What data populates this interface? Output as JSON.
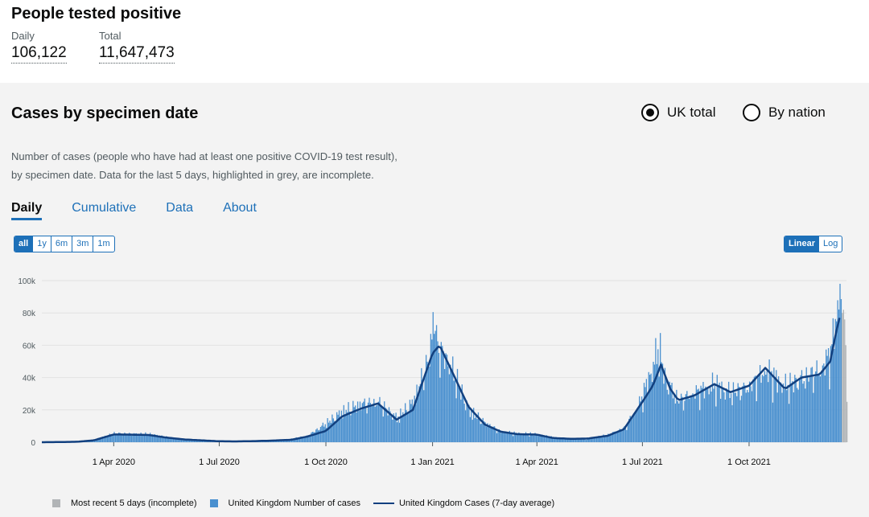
{
  "header": {
    "title": "People tested positive",
    "daily_label": "Daily",
    "daily_value": "106,122",
    "total_label": "Total",
    "total_value": "11,647,473"
  },
  "card": {
    "title": "Cases by specimen date",
    "radio_uk": "UK total",
    "radio_nation": "By nation",
    "selected_radio": "UK total",
    "description_line1": "Number of cases (people who have had at least one positive COVID-19 test result),",
    "description_line2": "by specimen date. Data for the last 5 days, highlighted in grey, are incomplete.",
    "tabs": [
      {
        "label": "Daily",
        "active": true
      },
      {
        "label": "Cumulative",
        "active": false
      },
      {
        "label": "Data",
        "active": false
      },
      {
        "label": "About",
        "active": false
      }
    ],
    "ranges": [
      {
        "label": "all",
        "active": true
      },
      {
        "label": "1y",
        "active": false
      },
      {
        "label": "6m",
        "active": false
      },
      {
        "label": "3m",
        "active": false
      },
      {
        "label": "1m",
        "active": false
      }
    ],
    "scales": [
      {
        "label": "Linear",
        "active": true
      },
      {
        "label": "Log",
        "active": false
      }
    ]
  },
  "chart_data": {
    "type": "bar",
    "title": "",
    "xlabel": "",
    "ylabel": "",
    "ylim": [
      0,
      105000
    ],
    "y_ticks": [
      0,
      20000,
      40000,
      60000,
      80000,
      100000
    ],
    "y_tick_labels": [
      "0",
      "20k",
      "40k",
      "60k",
      "80k",
      "100k"
    ],
    "x_tick_labels": [
      "1 Apr 2020",
      "1 Jul 2020",
      "1 Oct 2020",
      "1 Jan 2021",
      "1 Apr 2021",
      "1 Jul 2021",
      "1 Oct 2021"
    ],
    "x_tick_dates": [
      "2020-04-01",
      "2020-07-01",
      "2020-10-01",
      "2021-01-01",
      "2021-04-01",
      "2021-07-01",
      "2021-10-01"
    ],
    "x_range": [
      "2020-01-30",
      "2021-12-24"
    ],
    "grid": "horizontal",
    "legend_position": "bottom",
    "colors": {
      "bars": "#4a90cf",
      "incomplete": "#b1b4b6",
      "average": "#12407f"
    },
    "series": [
      {
        "name": "United Kingdom Number of cases",
        "kind": "bar",
        "x": [
          "2020-02-15",
          "2020-03-01",
          "2020-03-15",
          "2020-04-01",
          "2020-04-15",
          "2020-05-01",
          "2020-05-15",
          "2020-06-01",
          "2020-06-15",
          "2020-07-01",
          "2020-07-15",
          "2020-08-01",
          "2020-08-15",
          "2020-09-01",
          "2020-09-15",
          "2020-10-01",
          "2020-10-15",
          "2020-11-01",
          "2020-11-15",
          "2020-12-01",
          "2020-12-15",
          "2020-12-29",
          "2021-01-01",
          "2021-01-05",
          "2021-01-15",
          "2021-02-01",
          "2021-02-15",
          "2021-03-01",
          "2021-03-15",
          "2021-04-01",
          "2021-04-15",
          "2021-05-01",
          "2021-05-15",
          "2021-06-01",
          "2021-06-15",
          "2021-06-28",
          "2021-07-01",
          "2021-07-08",
          "2021-07-15",
          "2021-07-20",
          "2021-08-01",
          "2021-08-15",
          "2021-09-01",
          "2021-09-15",
          "2021-10-01",
          "2021-10-15",
          "2021-11-01",
          "2021-11-15",
          "2021-12-01",
          "2021-12-10",
          "2021-12-15",
          "2021-12-17",
          "2021-12-19"
        ],
        "values": [
          0,
          300,
          1500,
          5500,
          5200,
          5000,
          3200,
          1800,
          1200,
          700,
          650,
          900,
          1200,
          2000,
          4000,
          12000,
          19000,
          24000,
          25000,
          15000,
          25000,
          53000,
          81000,
          60000,
          50000,
          20000,
          12000,
          6500,
          5500,
          4800,
          3000,
          2300,
          2200,
          4500,
          9000,
          24000,
          30000,
          44000,
          60000,
          40000,
          26000,
          31000,
          36000,
          31000,
          35000,
          45000,
          35000,
          40000,
          45000,
          56000,
          80000,
          93000,
          103000
        ]
      },
      {
        "name": "United Kingdom Cases (7-day average)",
        "kind": "line",
        "x": [
          "2020-01-30",
          "2020-02-15",
          "2020-03-01",
          "2020-03-15",
          "2020-04-01",
          "2020-04-15",
          "2020-05-01",
          "2020-05-15",
          "2020-06-01",
          "2020-06-15",
          "2020-07-01",
          "2020-07-15",
          "2020-08-01",
          "2020-08-15",
          "2020-09-01",
          "2020-09-15",
          "2020-10-01",
          "2020-10-15",
          "2020-11-01",
          "2020-11-15",
          "2020-12-01",
          "2020-12-15",
          "2021-01-01",
          "2021-01-07",
          "2021-01-15",
          "2021-02-01",
          "2021-02-15",
          "2021-03-01",
          "2021-03-15",
          "2021-04-01",
          "2021-04-15",
          "2021-05-01",
          "2021-05-15",
          "2021-06-01",
          "2021-06-15",
          "2021-07-01",
          "2021-07-10",
          "2021-07-17",
          "2021-07-25",
          "2021-08-01",
          "2021-08-15",
          "2021-09-01",
          "2021-09-15",
          "2021-10-01",
          "2021-10-15",
          "2021-11-01",
          "2021-11-15",
          "2021-12-01",
          "2021-12-10",
          "2021-12-15",
          "2021-12-19"
        ],
        "values": [
          0,
          100,
          300,
          1200,
          4800,
          4700,
          4500,
          3000,
          1700,
          1200,
          600,
          500,
          700,
          1000,
          1500,
          3500,
          7000,
          16000,
          21000,
          24000,
          14000,
          20000,
          55000,
          60000,
          48000,
          22000,
          11000,
          6500,
          5000,
          4700,
          2600,
          2100,
          2300,
          4000,
          8000,
          25000,
          35000,
          48000,
          33000,
          26000,
          29000,
          36000,
          31000,
          35000,
          46000,
          33000,
          40000,
          42000,
          50000,
          68000,
          80000
        ]
      },
      {
        "name": "Most recent 5 days (incomplete)",
        "kind": "bar",
        "x": [
          "2021-12-20",
          "2021-12-21",
          "2021-12-22",
          "2021-12-23",
          "2021-12-24"
        ],
        "values": [
          80000,
          82000,
          76000,
          60000,
          25000
        ]
      }
    ]
  }
}
